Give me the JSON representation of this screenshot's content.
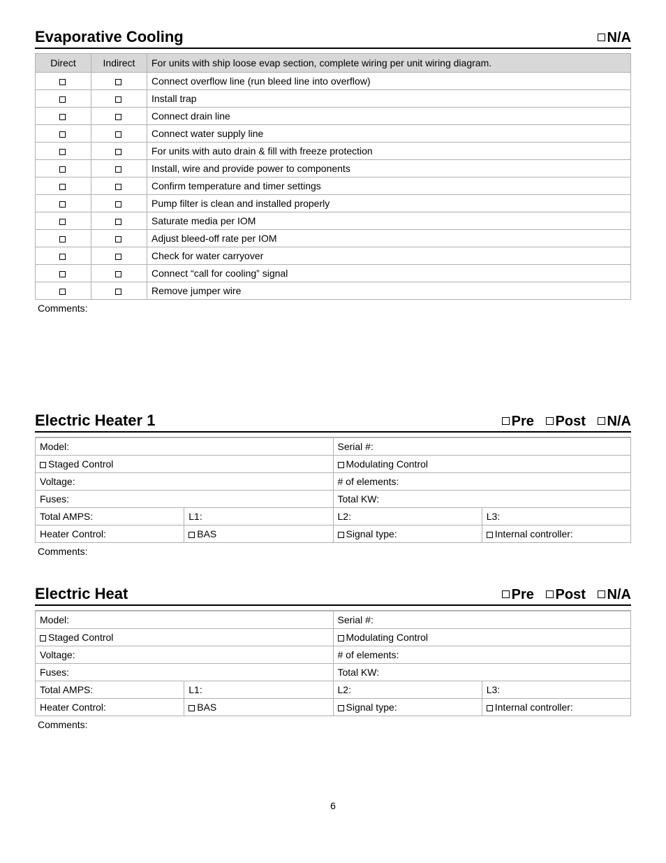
{
  "page_number": "6",
  "sections": {
    "evap": {
      "title": "Evaporative Cooling",
      "na_label": "N/A",
      "col_direct": "Direct",
      "col_indirect": "Indirect",
      "header_note": "For units with ship loose evap section, complete wiring per unit wiring diagram.",
      "rows": [
        "Connect overflow line (run bleed line into overflow)",
        "Install trap",
        "Connect drain line",
        "Connect water supply line",
        "For units with auto drain & fill with freeze protection",
        "Install, wire and provide power to components",
        "Confirm temperature and timer settings",
        "Pump filter is clean and installed properly",
        "Saturate media per IOM",
        "Adjust bleed-off rate per IOM",
        "Check for water carryover",
        "Connect “call for cooling” signal",
        "Remove jumper wire"
      ],
      "comments_label": "Comments:"
    },
    "heater1": {
      "title": "Electric Heater 1",
      "pre_label": "Pre",
      "post_label": "Post",
      "na_label": "N/A",
      "fields": {
        "model": "Model:",
        "serial": "Serial #:",
        "staged": "Staged Control",
        "modulating": "Modulating Control",
        "voltage": "Voltage:",
        "elements": "# of elements:",
        "fuses": "Fuses:",
        "total_kw": "Total KW:",
        "total_amps": "Total AMPS:",
        "l1": "L1:",
        "l2": "L2:",
        "l3": "L3:",
        "heater_control": "Heater Control:",
        "bas": "BAS",
        "signal_type": "Signal type:",
        "internal_controller": "Internal controller:"
      },
      "comments_label": "Comments:"
    },
    "heat": {
      "title": "Electric Heat",
      "pre_label": "Pre",
      "post_label": "Post",
      "na_label": "N/A",
      "fields": {
        "model": "Model:",
        "serial": "Serial #:",
        "staged": "Staged Control",
        "modulating": "Modulating Control",
        "voltage": "Voltage:",
        "elements": "# of elements:",
        "fuses": "Fuses:",
        "total_kw": "Total KW:",
        "total_amps": "Total AMPS:",
        "l1": "L1:",
        "l2": "L2:",
        "l3": "L3:",
        "heater_control": "Heater Control:",
        "bas": "BAS",
        "signal_type": "Signal type:",
        "internal_controller": "Internal controller:"
      },
      "comments_label": "Comments:"
    }
  }
}
